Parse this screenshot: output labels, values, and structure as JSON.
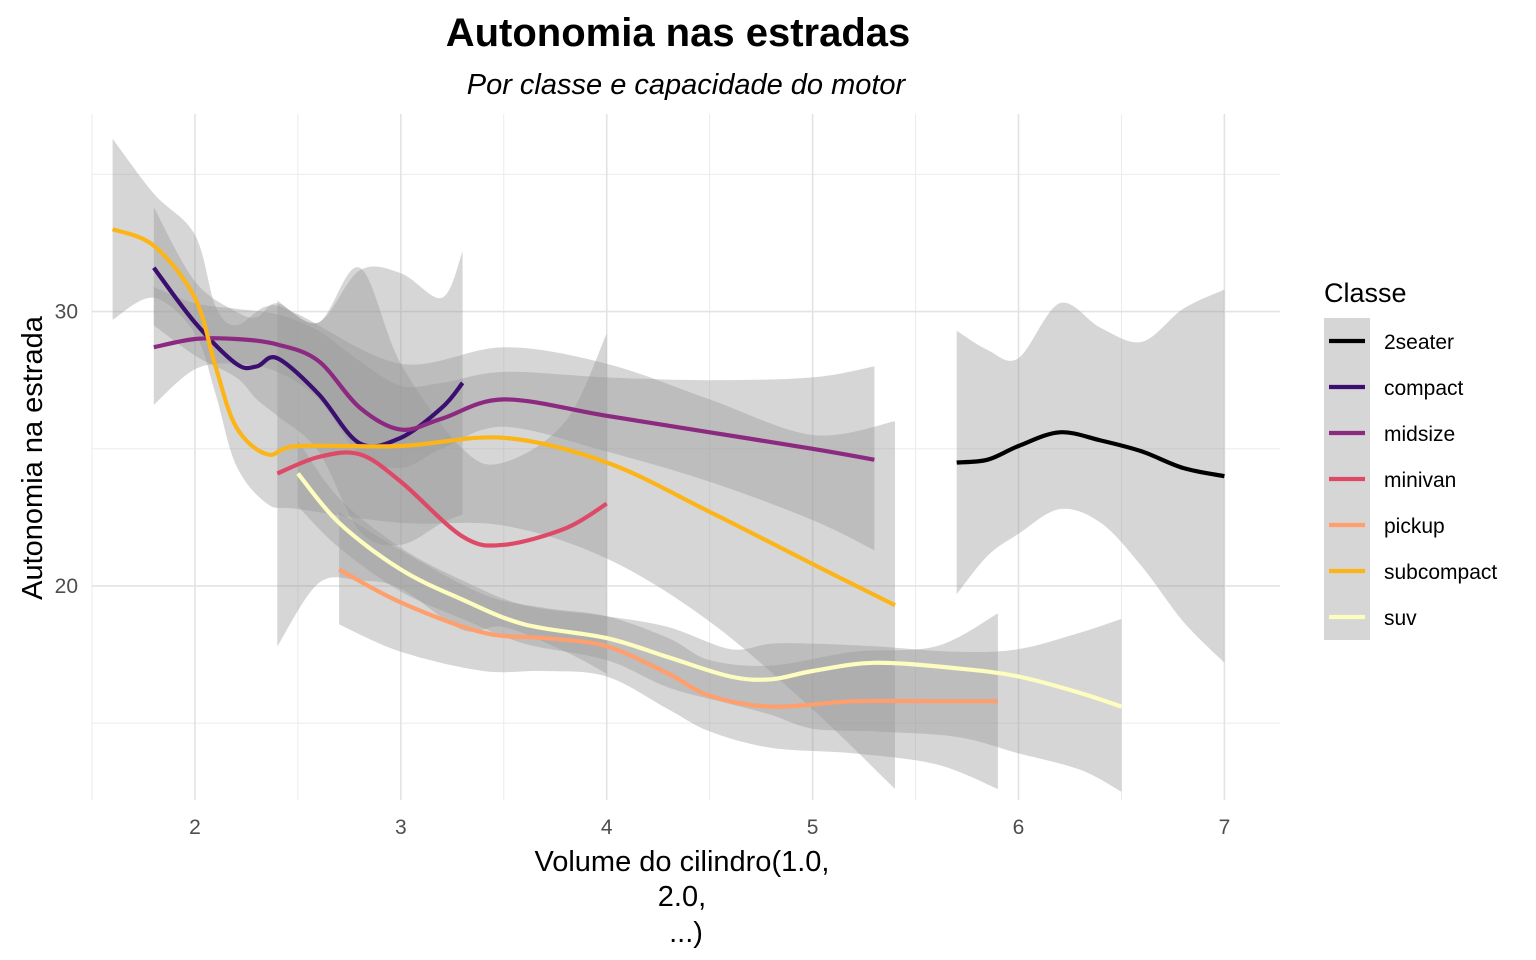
{
  "chart_data": {
    "type": "line",
    "title": "Autonomia nas estradas",
    "subtitle": "Por classe e capacidade do motor",
    "xlabel_lines": [
      "Volume do cilindro(1.0,",
      "2.0,",
      "...)"
    ],
    "ylabel": "Autonomia na estrada",
    "xlim": [
      1.5,
      7.27
    ],
    "ylim": [
      12.2,
      37.2
    ],
    "x_ticks": [
      2,
      3,
      4,
      5,
      6,
      7
    ],
    "y_ticks": [
      20,
      30
    ],
    "grid": true,
    "legend": {
      "title": "Classe",
      "position": "right"
    },
    "band_color": "#999999",
    "series": [
      {
        "name": "2seater",
        "color": "#000000",
        "x": [
          5.7,
          5.85,
          6.0,
          6.2,
          6.4,
          6.6,
          6.8,
          7.0
        ],
        "y": [
          24.5,
          24.6,
          25.1,
          25.6,
          25.3,
          24.9,
          24.3,
          24.0
        ],
        "se_low": [
          19.7,
          21.1,
          21.9,
          22.8,
          22.3,
          20.7,
          18.7,
          17.2
        ],
        "se_high": [
          29.3,
          28.6,
          28.3,
          30.3,
          29.4,
          28.9,
          30.1,
          30.8
        ]
      },
      {
        "name": "compact",
        "color": "#3b0f70",
        "x": [
          1.8,
          2.0,
          2.2,
          2.3,
          2.4,
          2.6,
          2.8,
          3.0,
          3.2,
          3.3
        ],
        "y": [
          31.6,
          29.6,
          28.1,
          28.0,
          28.3,
          27.0,
          25.2,
          25.4,
          26.5,
          27.4
        ],
        "se_low": [
          29.5,
          28.4,
          27.6,
          26.8,
          26.2,
          24.9,
          22.0,
          21.5,
          22.3,
          22.6
        ],
        "se_high": [
          33.8,
          31.1,
          30.0,
          29.8,
          30.3,
          29.6,
          31.5,
          31.4,
          30.5,
          32.2
        ]
      },
      {
        "name": "midsize",
        "color": "#8c2981",
        "x": [
          1.8,
          2.0,
          2.2,
          2.4,
          2.6,
          2.8,
          3.0,
          3.2,
          3.5,
          4.0,
          4.5,
          5.0,
          5.3
        ],
        "y": [
          28.7,
          29.0,
          29.0,
          28.8,
          28.2,
          26.5,
          25.7,
          26.1,
          26.8,
          26.2,
          25.6,
          25.0,
          24.6
        ],
        "se_low": [
          26.6,
          27.9,
          28.1,
          27.8,
          26.8,
          24.8,
          24.3,
          25.0,
          25.8,
          24.9,
          23.8,
          22.4,
          21.3
        ],
        "se_high": [
          30.9,
          30.3,
          30.1,
          29.9,
          29.3,
          28.2,
          27.3,
          27.4,
          27.8,
          27.6,
          27.5,
          27.6,
          28.0
        ]
      },
      {
        "name": "minivan",
        "color": "#de4968",
        "x": [
          2.4,
          2.6,
          2.8,
          3.0,
          3.3,
          3.5,
          3.8,
          4.0
        ],
        "y": [
          24.1,
          24.7,
          24.8,
          23.8,
          21.8,
          21.5,
          22.1,
          23.0
        ],
        "se_low": [
          17.8,
          20.1,
          20.2,
          19.9,
          18.4,
          18.5,
          17.6,
          16.8
        ],
        "se_high": [
          30.4,
          29.6,
          31.6,
          28.1,
          25.0,
          24.5,
          26.0,
          29.2
        ]
      },
      {
        "name": "pickup",
        "color": "#fe9f6d",
        "x": [
          2.7,
          3.0,
          3.4,
          3.7,
          4.0,
          4.3,
          4.5,
          4.8,
          5.2,
          5.6,
          5.9
        ],
        "y": [
          20.6,
          19.4,
          18.3,
          18.1,
          17.8,
          16.8,
          16.0,
          15.6,
          15.8,
          15.8,
          15.8
        ],
        "se_low": [
          18.6,
          17.6,
          16.9,
          16.9,
          16.7,
          15.5,
          14.7,
          14.1,
          13.9,
          13.5,
          12.6
        ],
        "se_high": [
          22.7,
          21.3,
          19.7,
          19.2,
          18.9,
          18.1,
          17.3,
          17.1,
          17.6,
          17.8,
          19.0
        ]
      },
      {
        "name": "subcompact",
        "color": "#fcb519",
        "x": [
          1.6,
          1.8,
          2.0,
          2.1,
          2.2,
          2.35,
          2.5,
          3.0,
          3.5,
          4.0,
          4.5,
          5.0,
          5.4
        ],
        "y": [
          33.0,
          32.4,
          30.5,
          28.0,
          25.8,
          24.8,
          25.1,
          25.1,
          25.4,
          24.5,
          22.7,
          20.8,
          19.3
        ],
        "se_low": [
          29.7,
          30.5,
          29.2,
          27.0,
          24.4,
          23.0,
          22.8,
          22.3,
          22.2,
          21.0,
          18.7,
          15.5,
          12.6
        ],
        "se_high": [
          36.3,
          34.3,
          32.8,
          30.2,
          29.5,
          30.2,
          29.9,
          28.1,
          28.7,
          28.1,
          26.8,
          25.5,
          26.0
        ]
      },
      {
        "name": "suv",
        "color": "#fcfdbf",
        "x": [
          2.5,
          2.7,
          3.0,
          3.3,
          3.6,
          4.0,
          4.3,
          4.6,
          4.8,
          5.0,
          5.3,
          5.7,
          6.0,
          6.3,
          6.5
        ],
        "y": [
          24.1,
          22.3,
          20.6,
          19.5,
          18.6,
          18.1,
          17.4,
          16.7,
          16.6,
          16.9,
          17.2,
          17.0,
          16.7,
          16.1,
          15.6
        ],
        "se_low": [
          22.9,
          21.4,
          19.8,
          18.8,
          17.9,
          17.3,
          16.3,
          15.7,
          15.3,
          14.8,
          14.7,
          14.5,
          13.9,
          13.3,
          12.5
        ],
        "se_high": [
          25.3,
          23.2,
          21.4,
          20.2,
          19.3,
          18.9,
          18.5,
          17.7,
          17.9,
          17.9,
          17.8,
          17.6,
          17.7,
          18.3,
          18.8
        ]
      }
    ]
  }
}
